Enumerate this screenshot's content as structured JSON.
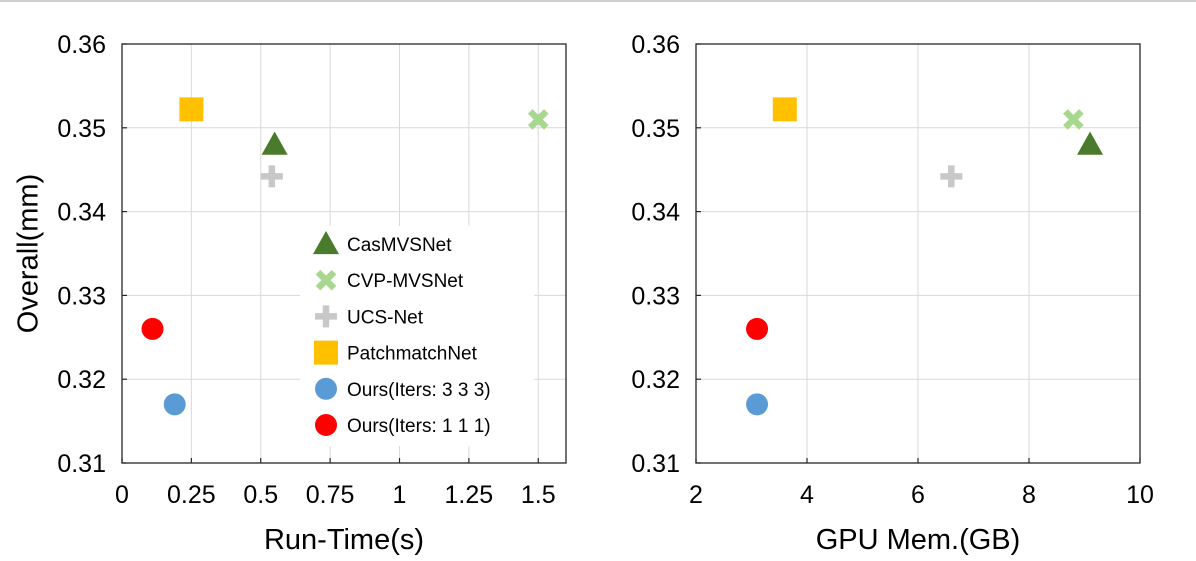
{
  "chart_data": [
    {
      "type": "scatter",
      "xlabel": "Run-Time(s)",
      "ylabel": "Overall(mm)",
      "xlim": [
        0,
        1.6
      ],
      "ylim": [
        0.31,
        0.36
      ],
      "x_ticks": [
        "0",
        "0.25",
        "0.5",
        "0.75",
        "1",
        "1.25",
        "1.5"
      ],
      "x_tick_values": [
        0,
        0.25,
        0.5,
        0.75,
        1,
        1.25,
        1.5
      ],
      "y_ticks": [
        "0.31",
        "0.32",
        "0.33",
        "0.34",
        "0.35",
        "0.36"
      ],
      "y_tick_values": [
        0.31,
        0.32,
        0.33,
        0.34,
        0.35,
        0.36
      ],
      "grid": true,
      "legend_position": "center-right",
      "series": [
        {
          "name": "CasMVSNet",
          "marker": "triangle",
          "color": "#4a7a2c",
          "points": [
            [
              0.55,
              0.348
            ]
          ]
        },
        {
          "name": "CVP-MVSNet",
          "marker": "x",
          "color": "#a8d890",
          "points": [
            [
              1.5,
              0.351
            ]
          ]
        },
        {
          "name": "UCS-Net",
          "marker": "plus",
          "color": "#c8c8c8",
          "points": [
            [
              0.54,
              0.3442
            ]
          ]
        },
        {
          "name": "PatchmatchNet",
          "marker": "square",
          "color": "#ffc000",
          "points": [
            [
              0.25,
              0.3522
            ]
          ]
        },
        {
          "name": "Ours(Iters: 3 3 3)",
          "marker": "circle",
          "color": "#5b9bd5",
          "points": [
            [
              0.19,
              0.317
            ]
          ]
        },
        {
          "name": "Ours(Iters: 1 1 1)",
          "marker": "circle",
          "color": "#ff0000",
          "points": [
            [
              0.11,
              0.326
            ]
          ]
        }
      ]
    },
    {
      "type": "scatter",
      "xlabel": "GPU Mem.(GB)",
      "ylabel": "",
      "xlim": [
        2,
        10
      ],
      "ylim": [
        0.31,
        0.36
      ],
      "x_ticks": [
        "2",
        "4",
        "6",
        "8",
        "10"
      ],
      "x_tick_values": [
        2,
        4,
        6,
        8,
        10
      ],
      "y_ticks": [
        "0.31",
        "0.32",
        "0.33",
        "0.34",
        "0.35",
        "0.36"
      ],
      "y_tick_values": [
        0.31,
        0.32,
        0.33,
        0.34,
        0.35,
        0.36
      ],
      "grid": true,
      "series": [
        {
          "name": "CasMVSNet",
          "marker": "triangle",
          "color": "#4a7a2c",
          "points": [
            [
              9.1,
              0.348
            ]
          ]
        },
        {
          "name": "CVP-MVSNet",
          "marker": "x",
          "color": "#a8d890",
          "points": [
            [
              8.8,
              0.351
            ]
          ]
        },
        {
          "name": "UCS-Net",
          "marker": "plus",
          "color": "#c8c8c8",
          "points": [
            [
              6.6,
              0.3442
            ]
          ]
        },
        {
          "name": "PatchmatchNet",
          "marker": "square",
          "color": "#ffc000",
          "points": [
            [
              3.6,
              0.3522
            ]
          ]
        },
        {
          "name": "Ours(Iters: 3 3 3)",
          "marker": "circle",
          "color": "#5b9bd5",
          "points": [
            [
              3.1,
              0.317
            ]
          ]
        },
        {
          "name": "Ours(Iters: 1 1 1)",
          "marker": "circle",
          "color": "#ff0000",
          "points": [
            [
              3.1,
              0.326
            ]
          ]
        }
      ]
    }
  ]
}
